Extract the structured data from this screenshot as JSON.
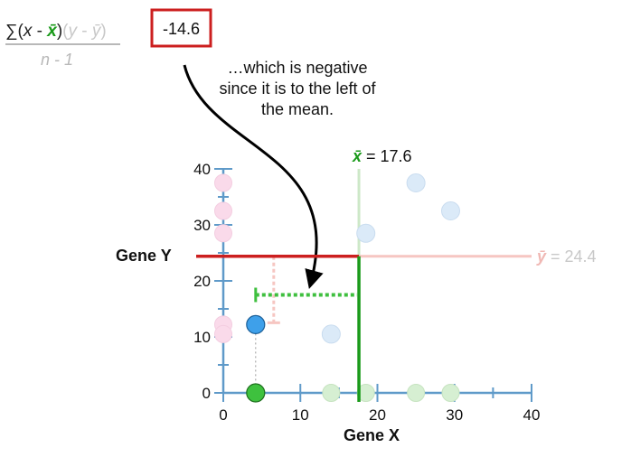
{
  "formula": {
    "sum_symbol": "∑",
    "open_paren_1": "(",
    "x": "x",
    "minus_1": " - ",
    "x_bar": "x̄",
    "close_paren_1": ")",
    "open_paren_2": "(",
    "y": "y",
    "minus_2": " - ",
    "y_bar": "ȳ",
    "close_paren_2": ")",
    "denominator": "n - 1",
    "result": "-14.6"
  },
  "annotation": {
    "lines": [
      "…which is negative",
      "since it is to the left of",
      "the mean."
    ]
  },
  "means": {
    "x_bar_symbol": "x̄",
    "x_bar_text": " = 17.6",
    "y_bar_symbol": "ȳ",
    "y_bar_text": " = 24.4"
  },
  "colors": {
    "axis": "#5f9ac9",
    "red": "#cc1f1f",
    "green": "#1a9a1a",
    "blue_dot": "#3ea0ea",
    "pink_dot": "#fadaea",
    "pale_green_dot": "#d6efd2",
    "pale_blue_dot": "#dbeaf8",
    "pale_red": "#f6c6c2",
    "pale_green_line": "#cde8c8",
    "highlight_green": "#3fbf3f"
  },
  "chart_data": {
    "type": "scatter",
    "xlabel": "Gene X",
    "ylabel": "Gene Y",
    "x_ticks": [
      "0",
      "10",
      "20",
      "30",
      "40"
    ],
    "y_ticks": [
      "0",
      "10",
      "20",
      "30",
      "40"
    ],
    "xlim": [
      0,
      40
    ],
    "ylim": [
      0,
      40
    ],
    "x_mean": 17.6,
    "y_mean": 24.4,
    "highlighted_point": {
      "x": 4.2,
      "y": 12.2
    },
    "points": [
      {
        "x": 4.2,
        "y": 12.2
      },
      {
        "x": 14.0,
        "y": 10.5
      },
      {
        "x": 18.5,
        "y": 28.5
      },
      {
        "x": 25.0,
        "y": 37.5
      },
      {
        "x": 29.5,
        "y": 32.5
      }
    ],
    "x_projections": [
      4.2,
      14.0,
      18.5,
      25.0,
      29.5
    ],
    "y_projections": [
      12.2,
      10.5,
      28.5,
      37.5,
      32.5
    ]
  }
}
